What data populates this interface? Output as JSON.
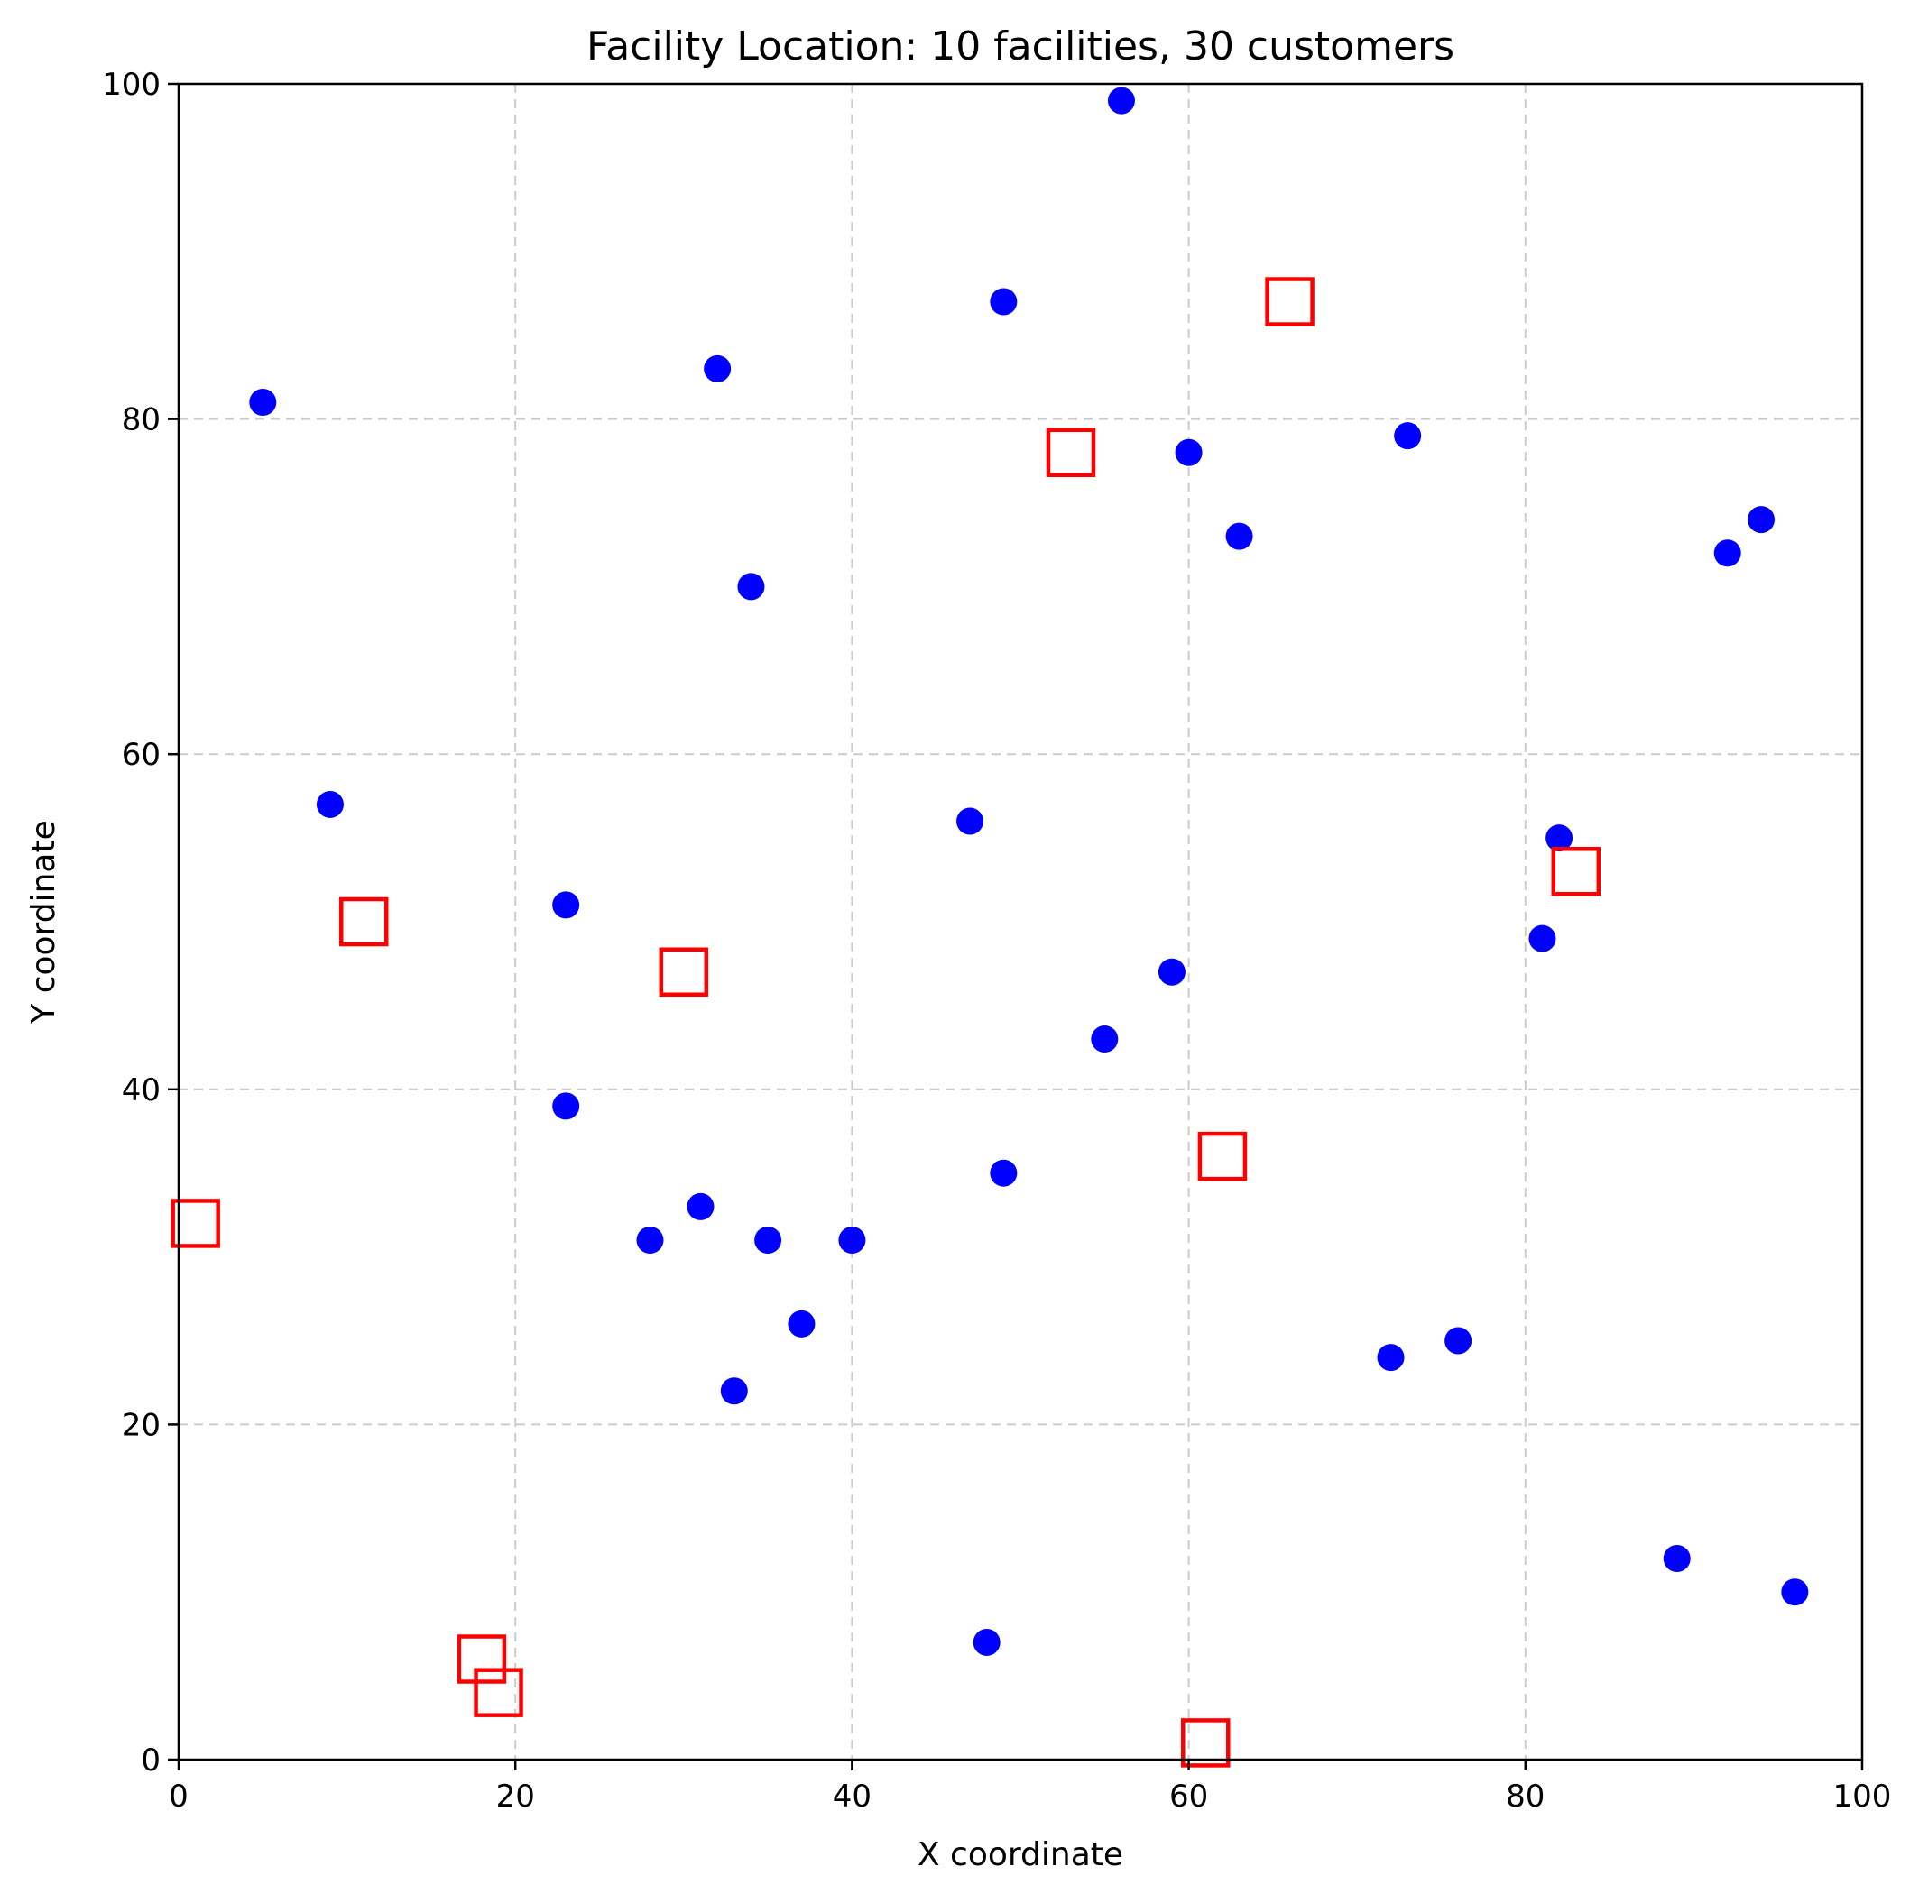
{
  "chart_data": {
    "type": "scatter",
    "title": "Facility Location: 10 facilities, 30 customers",
    "xlabel": "X coordinate",
    "ylabel": "Y coordinate",
    "xlim": [
      0,
      100
    ],
    "ylim": [
      0,
      100
    ],
    "xticks": [
      0,
      20,
      40,
      60,
      80,
      100
    ],
    "yticks": [
      0,
      20,
      40,
      60,
      80,
      100
    ],
    "xtick_labels": [
      "0",
      "20",
      "40",
      "60",
      "80",
      "100"
    ],
    "ytick_labels": [
      "0",
      "20",
      "40",
      "60",
      "80",
      "100"
    ],
    "grid": true,
    "series": [
      {
        "marker": "circle",
        "color": "#0000ff",
        "points": [
          [
            5,
            81
          ],
          [
            56,
            99
          ],
          [
            49,
            87
          ],
          [
            32,
            83
          ],
          [
            60,
            78
          ],
          [
            73,
            79
          ],
          [
            63,
            73
          ],
          [
            34,
            70
          ],
          [
            92,
            72
          ],
          [
            94,
            74
          ],
          [
            9,
            57
          ],
          [
            47,
            56
          ],
          [
            82,
            55
          ],
          [
            23,
            51
          ],
          [
            81,
            49
          ],
          [
            59,
            47
          ],
          [
            55,
            43
          ],
          [
            23,
            39
          ],
          [
            49,
            35
          ],
          [
            31,
            33
          ],
          [
            28,
            31
          ],
          [
            35,
            31
          ],
          [
            40,
            31
          ],
          [
            37,
            26
          ],
          [
            76,
            25
          ],
          [
            72,
            24
          ],
          [
            33,
            22
          ],
          [
            89,
            12
          ],
          [
            96,
            10
          ],
          [
            48,
            7
          ]
        ]
      },
      {
        "marker": "square-hollow",
        "color": "#ff0000",
        "points": [
          [
            66,
            87
          ],
          [
            53,
            78
          ],
          [
            83,
            53
          ],
          [
            11,
            50
          ],
          [
            30,
            47
          ],
          [
            62,
            36
          ],
          [
            1,
            32
          ],
          [
            18,
            6
          ],
          [
            19,
            4
          ],
          [
            61,
            1
          ]
        ]
      }
    ]
  }
}
